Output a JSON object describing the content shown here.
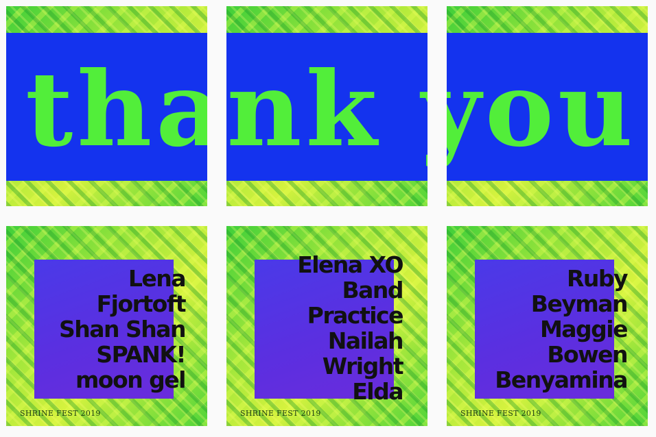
{
  "top_row": {
    "text": "thank you!",
    "band_color": "#1433ee",
    "text_color": "#52ee3a"
  },
  "lineups": [
    {
      "names": [
        "Lena",
        "Fjortoft",
        "Shan Shan",
        "SPANK!",
        "moon gel"
      ]
    },
    {
      "names": [
        "Elena XO",
        "Band",
        "Practice",
        "Nailah",
        "Wright",
        "Elda"
      ]
    },
    {
      "names": [
        "Ruby",
        "Beyman",
        "Maggie",
        "Bowen",
        "Benyamina"
      ]
    }
  ],
  "footer": "SHRINE FEST 2019",
  "colors": {
    "square": "#5b2fe0",
    "background_green": "#8ee23a",
    "name_text": "#111111"
  }
}
